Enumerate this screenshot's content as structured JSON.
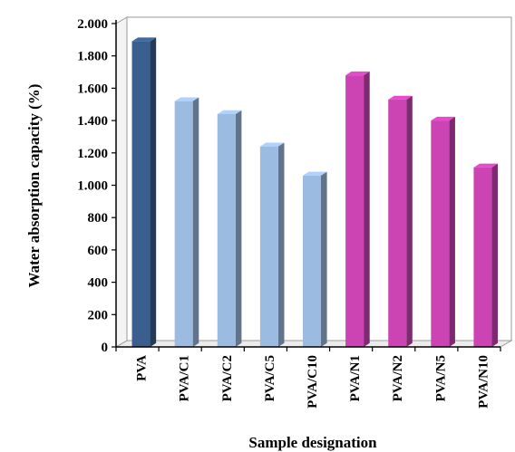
{
  "chart_data": {
    "type": "bar",
    "title": "",
    "xlabel": "Sample designation",
    "ylabel": "Water absorption capacity (%)",
    "ylim": [
      0,
      2000
    ],
    "yticks": [
      0,
      200,
      400,
      600,
      800,
      1000,
      1200,
      1400,
      1600,
      1800,
      2000
    ],
    "ytick_labels": [
      "0",
      "200",
      "400",
      "600",
      "800",
      "1.000",
      "1.200",
      "1.400",
      "1.600",
      "1.800",
      "2.000"
    ],
    "categories": [
      "PVA",
      "PVA/C1",
      "PVA/C2",
      "PVA/C5",
      "PVA/C10",
      "PVA/N1",
      "PVA/N2",
      "PVA/N5",
      "PVA/N10"
    ],
    "values": [
      1890,
      1520,
      1440,
      1240,
      1060,
      1680,
      1530,
      1400,
      1110
    ],
    "grid": false,
    "legend": "none",
    "colors": [
      "#3a5f8e",
      "#9cbbe0",
      "#9cbbe0",
      "#9cbbe0",
      "#9cbbe0",
      "#cc44b4",
      "#cc44b4",
      "#cc44b4",
      "#cc44b4"
    ]
  }
}
